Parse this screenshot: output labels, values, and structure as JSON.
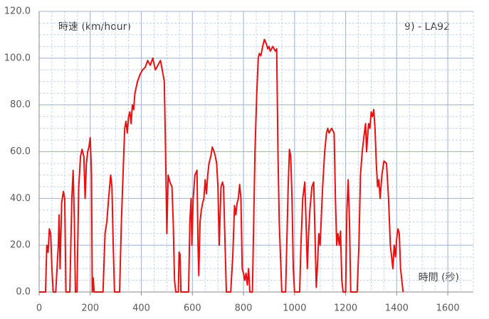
{
  "chart_data": {
    "type": "line",
    "title": "9) - LA92",
    "y_label": "時速 (km/hour)",
    "x_label": "時間 (秒)",
    "color": "#e81010",
    "grid": true,
    "xminor": 50,
    "yminor": 5,
    "xlim": [
      0,
      1700
    ],
    "ylim": [
      0,
      120
    ],
    "xticks": [
      0,
      200,
      400,
      600,
      800,
      1000,
      1200,
      1400,
      1600
    ],
    "yticks": [
      {
        "value": 0,
        "label": "0.0"
      },
      {
        "value": 20,
        "label": "20.0"
      },
      {
        "value": 40,
        "label": "40.0"
      },
      {
        "value": 60,
        "label": "60.0"
      },
      {
        "value": 80,
        "label": "80.0"
      },
      {
        "value": 100,
        "label": "100.0"
      },
      {
        "value": 120,
        "label": "120.0"
      }
    ],
    "x": [
      0,
      25,
      30,
      35,
      40,
      45,
      50,
      55,
      65,
      75,
      78,
      82,
      88,
      95,
      100,
      105,
      120,
      128,
      133,
      138,
      142,
      148,
      155,
      162,
      168,
      175,
      180,
      185,
      190,
      195,
      200,
      205,
      208,
      212,
      215,
      250,
      258,
      265,
      272,
      280,
      285,
      290,
      295,
      315,
      322,
      330,
      335,
      340,
      345,
      350,
      355,
      360,
      365,
      370,
      375,
      385,
      395,
      405,
      415,
      425,
      435,
      445,
      455,
      465,
      475,
      482,
      490,
      495,
      500,
      505,
      512,
      520,
      525,
      530,
      535,
      545,
      548,
      552,
      555,
      585,
      590,
      595,
      598,
      603,
      610,
      618,
      622,
      625,
      630,
      635,
      640,
      645,
      650,
      655,
      660,
      665,
      672,
      678,
      685,
      690,
      695,
      700,
      705,
      712,
      718,
      722,
      728,
      733,
      750,
      758,
      765,
      770,
      775,
      780,
      785,
      790,
      795,
      800,
      805,
      810,
      815,
      820,
      825,
      835,
      845,
      852,
      858,
      862,
      868,
      875,
      882,
      890,
      895,
      900,
      905,
      915,
      925,
      930,
      935,
      940,
      945,
      950,
      965,
      975,
      980,
      985,
      990,
      995,
      1000,
      1020,
      1025,
      1032,
      1040,
      1045,
      1050,
      1055,
      1060,
      1068,
      1075,
      1080,
      1085,
      1090,
      1095,
      1100,
      1110,
      1118,
      1125,
      1130,
      1135,
      1145,
      1155,
      1160,
      1165,
      1170,
      1175,
      1180,
      1185,
      1190,
      1200,
      1205,
      1210,
      1215,
      1220,
      1245,
      1252,
      1258,
      1265,
      1270,
      1278,
      1282,
      1285,
      1290,
      1295,
      1300,
      1305,
      1310,
      1315,
      1320,
      1325,
      1330,
      1335,
      1342,
      1350,
      1360,
      1368,
      1375,
      1385,
      1390,
      1395,
      1400,
      1405,
      1410,
      1415,
      1425
    ],
    "values": [
      0,
      0,
      20,
      17,
      27,
      25,
      10,
      0,
      0,
      20,
      33,
      10,
      38,
      43,
      40,
      0,
      0,
      40,
      52,
      30,
      0,
      0,
      45,
      58,
      61,
      58,
      40,
      55,
      60,
      62,
      66,
      50,
      0,
      6,
      0,
      0,
      25,
      30,
      40,
      50,
      45,
      20,
      0,
      0,
      30,
      55,
      70,
      73,
      68,
      75,
      77,
      72,
      80,
      78,
      85,
      90,
      93,
      95,
      96,
      99,
      97,
      100,
      95,
      97,
      99,
      95,
      90,
      60,
      25,
      50,
      47,
      45,
      30,
      5,
      0,
      0,
      17,
      16,
      0,
      0,
      30,
      40,
      20,
      40,
      50,
      52,
      20,
      7,
      30,
      35,
      38,
      40,
      48,
      42,
      50,
      55,
      58,
      62,
      60,
      58,
      55,
      45,
      20,
      45,
      47,
      45,
      20,
      0,
      0,
      15,
      37,
      33,
      38,
      40,
      46,
      40,
      10,
      8,
      5,
      8,
      3,
      10,
      0,
      0,
      60,
      85,
      100,
      102,
      101,
      105,
      108,
      106,
      104,
      105,
      103,
      105,
      103,
      104,
      60,
      30,
      15,
      0,
      0,
      45,
      61,
      58,
      40,
      10,
      0,
      0,
      20,
      40,
      47,
      30,
      10,
      25,
      35,
      45,
      47,
      25,
      2,
      12,
      25,
      20,
      45,
      60,
      68,
      70,
      68,
      70,
      68,
      40,
      20,
      25,
      20,
      26,
      5,
      0,
      0,
      35,
      48,
      30,
      0,
      0,
      20,
      50,
      60,
      65,
      72,
      60,
      65,
      72,
      70,
      77,
      75,
      78,
      70,
      55,
      45,
      48,
      40,
      50,
      56,
      55,
      40,
      20,
      10,
      20,
      15,
      23,
      27,
      25,
      10,
      0
    ]
  }
}
